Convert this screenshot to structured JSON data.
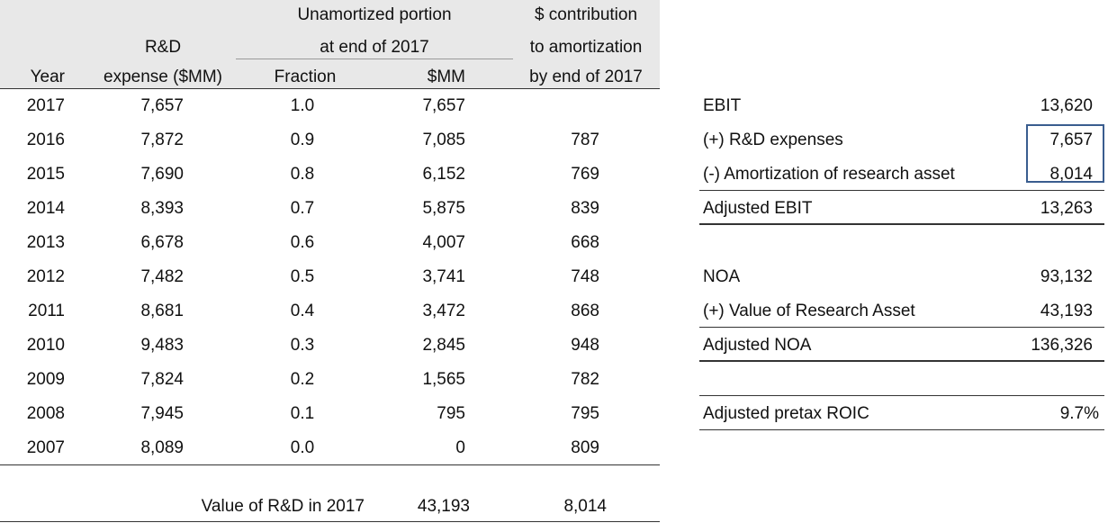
{
  "left_table": {
    "headers": {
      "year": "Year",
      "rd_line1": "R&D",
      "rd_line2": "expense ($MM)",
      "unamortized_line1": "Unamortized portion",
      "unamortized_line2": "at end of 2017",
      "fraction": "Fraction",
      "mm": "$MM",
      "contribution_line1": "$ contribution",
      "contribution_line2": "to amortization",
      "contribution_line3": "by end of 2017"
    },
    "rows": [
      {
        "year": "2017",
        "rd": "7,657",
        "fraction": "1.0",
        "mm": "7,657",
        "contribution": ""
      },
      {
        "year": "2016",
        "rd": "7,872",
        "fraction": "0.9",
        "mm": "7,085",
        "contribution": "787"
      },
      {
        "year": "2015",
        "rd": "7,690",
        "fraction": "0.8",
        "mm": "6,152",
        "contribution": "769"
      },
      {
        "year": "2014",
        "rd": "8,393",
        "fraction": "0.7",
        "mm": "5,875",
        "contribution": "839"
      },
      {
        "year": "2013",
        "rd": "6,678",
        "fraction": "0.6",
        "mm": "4,007",
        "contribution": "668"
      },
      {
        "year": "2012",
        "rd": "7,482",
        "fraction": "0.5",
        "mm": "3,741",
        "contribution": "748"
      },
      {
        "year": "2011",
        "rd": "8,681",
        "fraction": "0.4",
        "mm": "3,472",
        "contribution": "868"
      },
      {
        "year": "2010",
        "rd": "9,483",
        "fraction": "0.3",
        "mm": "2,845",
        "contribution": "948"
      },
      {
        "year": "2009",
        "rd": "7,824",
        "fraction": "0.2",
        "mm": "1,565",
        "contribution": "782"
      },
      {
        "year": "2008",
        "rd": "7,945",
        "fraction": "0.1",
        "mm": "795",
        "contribution": "795"
      },
      {
        "year": "2007",
        "rd": "8,089",
        "fraction": "0.0",
        "mm": "0",
        "contribution": "809"
      }
    ],
    "total": {
      "label": "Value of R&D in 2017",
      "mm": "43,193",
      "contribution": "8,014"
    }
  },
  "right_table": {
    "rows": [
      {
        "label": "EBIT",
        "value": "13,620"
      },
      {
        "label": "(+) R&D expenses",
        "value": "7,657"
      },
      {
        "label": "(-) Amortization of research asset",
        "value": "8,014"
      },
      {
        "label": "Adjusted EBIT",
        "value": "13,263"
      },
      {
        "label": "NOA",
        "value": "93,132"
      },
      {
        "label": "(+) Value of Research Asset",
        "value": "43,193"
      },
      {
        "label": "Adjusted NOA",
        "value": "136,326"
      },
      {
        "label": "Adjusted pretax ROIC",
        "value": "9.7%"
      }
    ]
  }
}
